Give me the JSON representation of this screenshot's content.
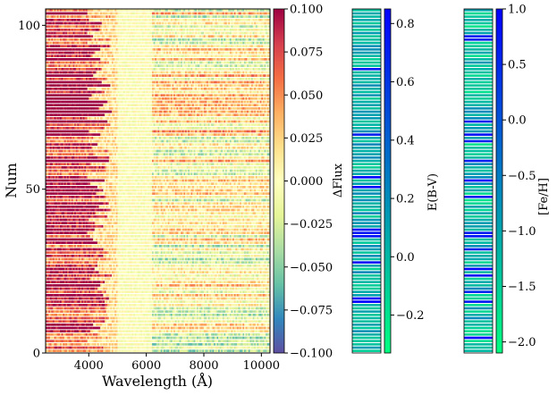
{
  "chart_data": [
    {
      "type": "heatmap",
      "xlabel": "Wavelength (Å)",
      "ylabel": "Num",
      "xlim": [
        2500,
        10300
      ],
      "ylim": [
        0,
        105
      ],
      "xticks": [
        4000,
        6000,
        8000,
        10000
      ],
      "xtick_labels": [
        "4000",
        "6000",
        "8000",
        "10000"
      ],
      "yticks": [
        0,
        50,
        100
      ],
      "ytick_labels": [
        "0",
        "50",
        "100"
      ],
      "n_rows": 105,
      "colormap": "Spectral_r",
      "colorbar": {
        "label": "ΔFlux",
        "range": [
          -0.1,
          0.1
        ],
        "ticks": [
          0.1,
          0.075,
          0.05,
          0.025,
          0.0,
          -0.025,
          -0.05,
          -0.075,
          -0.1
        ],
        "tick_labels": [
          "0.100",
          "0.075",
          "0.050",
          "0.025",
          "0.000",
          "−0.025",
          "−0.050",
          "−0.075",
          "−0.100"
        ]
      },
      "notes": "Blue-side (<4500 Å) residuals strongly positive for most rows; near-zero around 5000–6000 Å"
    },
    {
      "type": "heatmap",
      "colormap": "winter_r",
      "colorbar": {
        "label": "E(B-V)",
        "range": [
          -0.33,
          0.85
        ],
        "ticks": [
          0.8,
          0.6,
          0.4,
          0.2,
          0.0,
          -0.2
        ],
        "tick_labels": [
          "0.8",
          "0.6",
          "0.4",
          "0.2",
          "0.0",
          "−0.2"
        ]
      }
    },
    {
      "type": "heatmap",
      "colormap": "winter_r",
      "colorbar": {
        "label": "[Fe/H]",
        "range": [
          -2.1,
          1.0
        ],
        "ticks": [
          1.0,
          0.5,
          0.0,
          -0.5,
          -1.0,
          -1.5,
          -2.0
        ],
        "tick_labels": [
          "1.0",
          "0.5",
          "0.0",
          "−0.5",
          "−1.0",
          "−1.5",
          "−2.0"
        ]
      }
    }
  ]
}
